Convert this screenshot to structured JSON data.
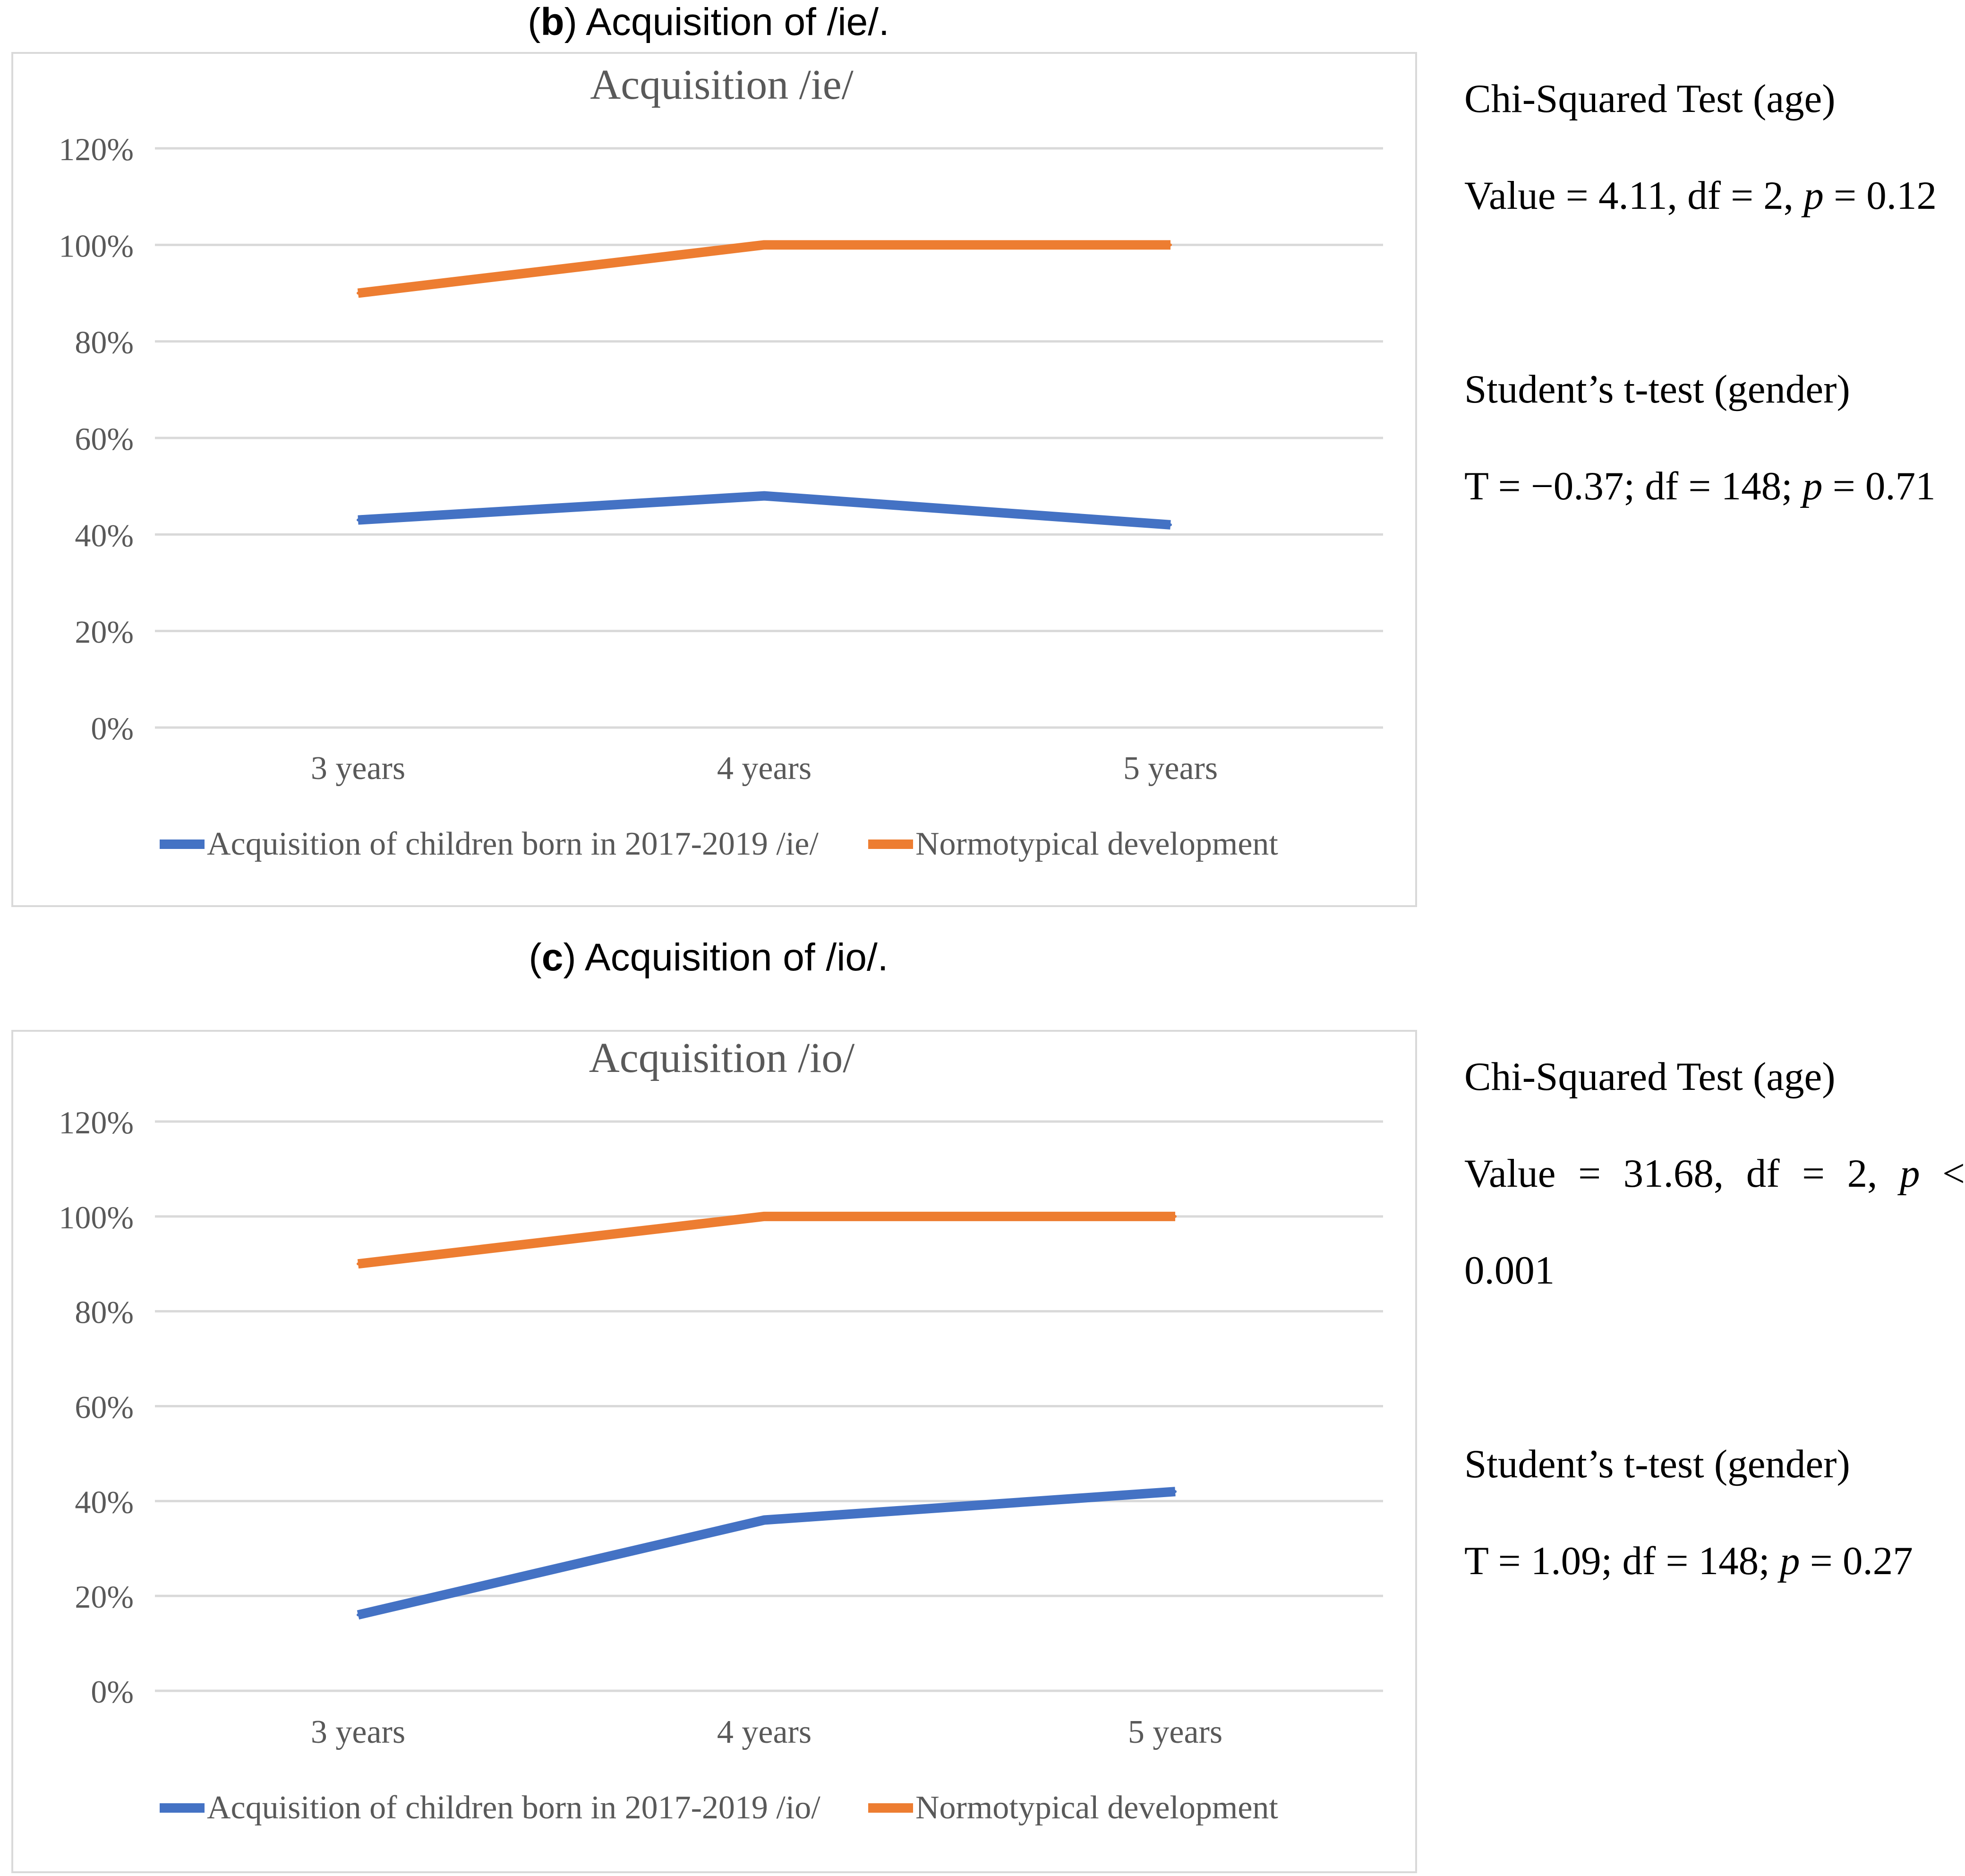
{
  "figures": [
    {
      "caption_letter": "b",
      "caption_text": ") Acquisition of /ie/.",
      "stats": {
        "chi_title": "Chi-Squared Test (age)",
        "chi_value_pre": "Value = 4.11, df = 2, ",
        "chi_p": "p",
        "chi_value_post": " = 0.12",
        "t_title": "Student’s t-test (gender)",
        "t_value_pre": "T = −0.37; df = 148; ",
        "t_p": "p",
        "t_value_post": " = 0.71"
      }
    },
    {
      "caption_letter": "c",
      "caption_text": ") Acquisition of /io/.",
      "stats": {
        "chi_title": "Chi-Squared Test (age)",
        "chi_parts": [
          "Value",
          "=",
          "31.68,",
          "df",
          "=",
          "2,",
          "p",
          "<"
        ],
        "chi_line2": "0.001",
        "t_title": "Student’s t-test (gender)",
        "t_value_pre": "T = 1.09; df = 148; ",
        "t_p": "p",
        "t_value_post": " = 0.27"
      }
    }
  ],
  "chart_data": [
    {
      "type": "line",
      "title": "Acquisition /ie/",
      "categories": [
        "3 years",
        "4 years",
        "5 years"
      ],
      "ylim": [
        0,
        120
      ],
      "yticks": [
        "0%",
        "20%",
        "40%",
        "60%",
        "80%",
        "100%",
        "120%"
      ],
      "grid": true,
      "legend_position": "bottom",
      "series": [
        {
          "name": "Acquisition of children born in 2017-2019 /ie/",
          "color": "#4472c4",
          "values": [
            43,
            48,
            42
          ]
        },
        {
          "name": "Normotypical development",
          "color": "#ed7d31",
          "values": [
            90,
            100,
            100
          ]
        }
      ]
    },
    {
      "type": "line",
      "title": "Acquisition /io/",
      "categories": [
        "3 years",
        "4 years",
        "5 years"
      ],
      "ylim": [
        0,
        120
      ],
      "yticks": [
        "0%",
        "20%",
        "40%",
        "60%",
        "80%",
        "100%",
        "120%"
      ],
      "grid": true,
      "legend_position": "bottom",
      "series": [
        {
          "name": "Acquisition of children born in 2017-2019  /io/",
          "color": "#4472c4",
          "values": [
            16,
            36,
            42
          ]
        },
        {
          "name": "Normotypical development",
          "color": "#ed7d31",
          "values": [
            90,
            100,
            100
          ]
        }
      ]
    }
  ]
}
